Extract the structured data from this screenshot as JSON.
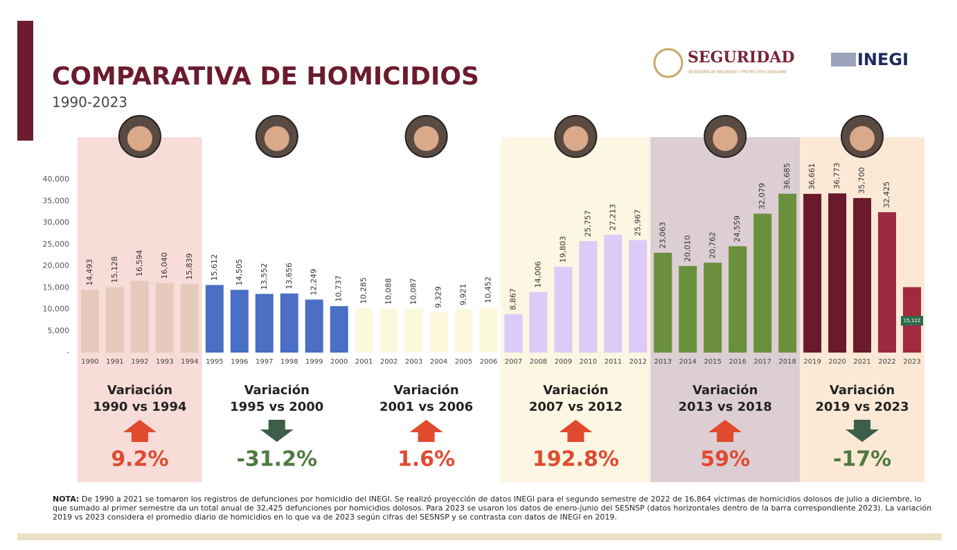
{
  "header": {
    "title": "COMPARATIVA DE HOMICIDIOS",
    "subtitle": "1990-2023",
    "logos": [
      "SEGURIDAD",
      "SECRETARÍA DE SEGURIDAD Y PROTECCIÓN CIUDADANA",
      "INEGI"
    ]
  },
  "chart_data": {
    "type": "bar",
    "categories": [
      "1990",
      "1991",
      "1992",
      "1993",
      "1994",
      "1995",
      "1996",
      "1997",
      "1998",
      "1999",
      "2000",
      "2001",
      "2002",
      "2003",
      "2004",
      "2005",
      "2006",
      "2007",
      "2008",
      "2009",
      "2010",
      "2011",
      "2012",
      "2013",
      "2014",
      "2015",
      "2016",
      "2017",
      "2018",
      "2019",
      "2020",
      "2021",
      "2022",
      "2023"
    ],
    "values": [
      14493,
      15128,
      16594,
      16040,
      15839,
      15612,
      14505,
      13552,
      13656,
      12249,
      10737,
      10285,
      10088,
      10087,
      9329,
      9921,
      10452,
      8867,
      14006,
      19803,
      25757,
      27213,
      25967,
      23063,
      20010,
      20762,
      24559,
      32079,
      36685,
      36661,
      36773,
      35700,
      32425,
      15122
    ],
    "value_labels": [
      "14,493",
      "15,128",
      "16,594",
      "16,040",
      "15,839",
      "15,612",
      "14,505",
      "13,552",
      "13,656",
      "12,249",
      "10,737",
      "10,285",
      "10,088",
      "10,087",
      "9,329",
      "9,921",
      "10,452",
      "8,867",
      "14,006",
      "19,803",
      "25,757",
      "27,213",
      "25,967",
      "23,063",
      "20,010",
      "20,762",
      "24,559",
      "32,079",
      "36,685",
      "36,661",
      "36,773",
      "35,700",
      "32,425",
      "15,122"
    ],
    "colors": [
      "#e6cbbd",
      "#e6cbbd",
      "#e6cbbd",
      "#e6cbbd",
      "#e6cbbd",
      "#4a6fc4",
      "#4a6fc4",
      "#4a6fc4",
      "#4a6fc4",
      "#4a6fc4",
      "#4a6fc4",
      "#fbf8dc",
      "#fbf8dc",
      "#fbf8dc",
      "#fbf8dc",
      "#fbf8dc",
      "#fbf8dc",
      "#dccbf6",
      "#dccbf6",
      "#dccbf6",
      "#dccbf6",
      "#dccbf6",
      "#dccbf6",
      "#6a8f3d",
      "#6a8f3d",
      "#6a8f3d",
      "#6a8f3d",
      "#6a8f3d",
      "#6a8f3d",
      "#6a1a2c",
      "#6a1a2c",
      "#6a1a2c",
      "#9c2b42",
      "#a3293f"
    ],
    "ylim": [
      0,
      40000
    ],
    "yticks": [
      {
        "value": 0,
        "label": "-"
      },
      {
        "value": 5000,
        "label": "5,000"
      },
      {
        "value": 10000,
        "label": "10,000"
      },
      {
        "value": 15000,
        "label": "15,000"
      },
      {
        "value": 20000,
        "label": "20,000"
      },
      {
        "value": 25000,
        "label": "25,000"
      },
      {
        "value": 30000,
        "label": "30,000"
      },
      {
        "value": 35000,
        "label": "35,000"
      },
      {
        "value": 40000,
        "label": "40,000"
      }
    ]
  },
  "periods": [
    {
      "title": "Variación",
      "range": "1990 vs 1994",
      "change": "9.2%",
      "direction": "up",
      "color": "#e04a2f",
      "background": "#f7dcd8"
    },
    {
      "title": "Variación",
      "range": "1995 vs 2000",
      "change": "-31.2%",
      "direction": "down",
      "color": "#4f7a3f",
      "background": "#ffffff"
    },
    {
      "title": "Variación",
      "range": "2001 vs 2006",
      "change": "1.6%",
      "direction": "up",
      "color": "#e04a2f",
      "background": "#ffffff"
    },
    {
      "title": "Variación",
      "range": "2007 vs 2012",
      "change": "192.8%",
      "direction": "up",
      "color": "#e04a2f",
      "background": "#fcf6e3"
    },
    {
      "title": "Variación",
      "range": "2013 vs 2018",
      "change": "59%",
      "direction": "up",
      "color": "#e04a2f",
      "background": "#dcced3"
    },
    {
      "title": "Variación",
      "range": "2019 vs 2023",
      "change": "-17%",
      "direction": "down",
      "color": "#4f7a3f",
      "background": "#fbe9d6"
    }
  ],
  "note": {
    "label": "NOTA:",
    "text": "De 1990 a 2021 se tomaron los registros de defunciones por homicidio del INEGI. Se realizó proyección de datos INEGI para el segundo semestre de 2022 de 16,864 víctimas de homicidios dolosos de julio a diciembre, lo que sumado al primer semestre da un total anual de 32,425 defunciones por homicidios dolosos. Para 2023 se usaron los datos de enero-junio del SESNSP (datos horizontales dentro de la barra correspondiente 2023). La variación 2019 vs 2023 considera el promedio diario de homicidios en lo que va de 2023 según cifras del SESNSP y se contrasta con datos de INEGI en 2019."
  }
}
